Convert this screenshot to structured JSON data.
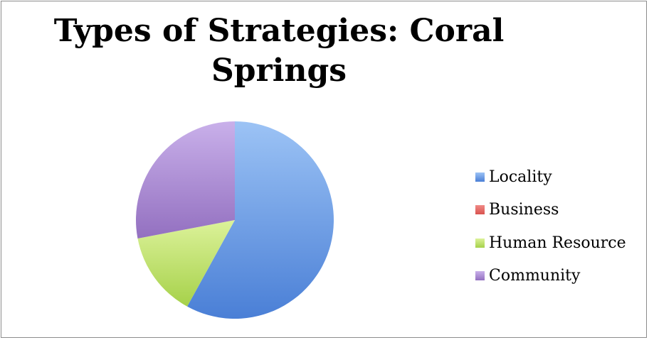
{
  "chart_data": {
    "type": "pie",
    "title": "Types of Strategies: Coral Springs",
    "title_lines": [
      "Types of Strategies: Coral",
      "Springs"
    ],
    "categories": [
      "Locality",
      "Business",
      "Human Resource",
      "Community"
    ],
    "values": [
      58,
      0,
      14,
      28
    ],
    "colors": [
      "#4a7fd6",
      "#d9534f",
      "#a6d14a",
      "#9370c0"
    ],
    "colors_light": [
      "#9cc3f5",
      "#f08a86",
      "#dcf29a",
      "#c9b0ea"
    ],
    "start_angle_deg": 0,
    "direction": "clockwise",
    "legend_position": "right"
  }
}
